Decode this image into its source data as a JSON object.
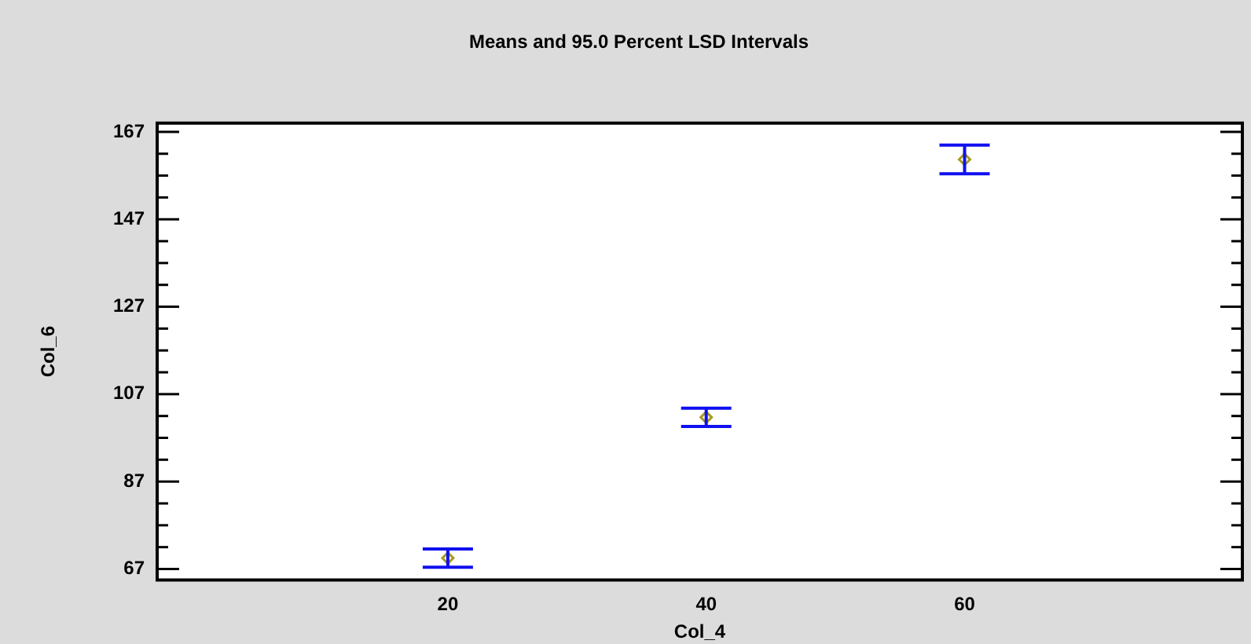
{
  "chart_data": {
    "type": "scatter",
    "title": "Means and 95.0 Percent LSD Intervals",
    "xlabel": "Col_4",
    "ylabel": "Col_6",
    "x": [
      20,
      40,
      60
    ],
    "series": [
      {
        "color": "#a89a20",
        "values": [
          69.5,
          101.7,
          160.7
        ],
        "errors": [
          2.1,
          2.1,
          3.3
        ]
      }
    ],
    "xlim": [
      -2.5,
      81.5
    ],
    "xticks": [
      20,
      40,
      60
    ],
    "ylim": [
      64.5,
      169
    ],
    "yticks": [
      67,
      {
        "value": 72,
        "label": null
      },
      {
        "value": 77,
        "label": null
      },
      {
        "value": 82,
        "label": null
      },
      87,
      {
        "value": 92,
        "label": null
      },
      {
        "value": 97,
        "label": null
      },
      {
        "value": 102,
        "label": null
      },
      107,
      {
        "value": 112,
        "label": null
      },
      {
        "value": 117,
        "label": null
      },
      {
        "value": 122,
        "label": null
      },
      127,
      {
        "value": 132,
        "label": null
      },
      {
        "value": 137,
        "label": null
      },
      {
        "value": 142,
        "label": null
      },
      147,
      {
        "value": 152,
        "label": null
      },
      {
        "value": 157,
        "label": null
      },
      {
        "value": 162,
        "label": null
      },
      167
    ],
    "marker": "diamond",
    "grid": false,
    "legend": false
  }
}
